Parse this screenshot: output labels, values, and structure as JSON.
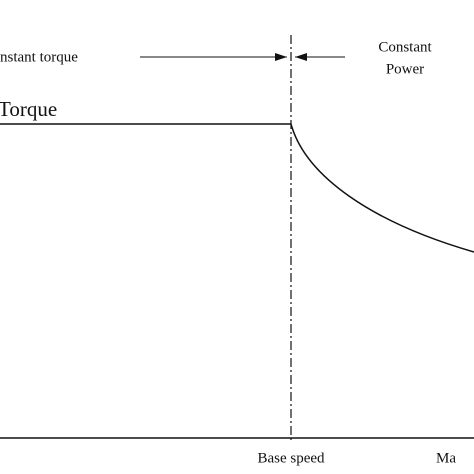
{
  "labels": {
    "constant_torque": "nstant torque",
    "constant_power": [
      "Constant",
      "Power"
    ],
    "torque": "Torque",
    "base_speed": "Base speed",
    "max_speed": "Ma"
  }
}
